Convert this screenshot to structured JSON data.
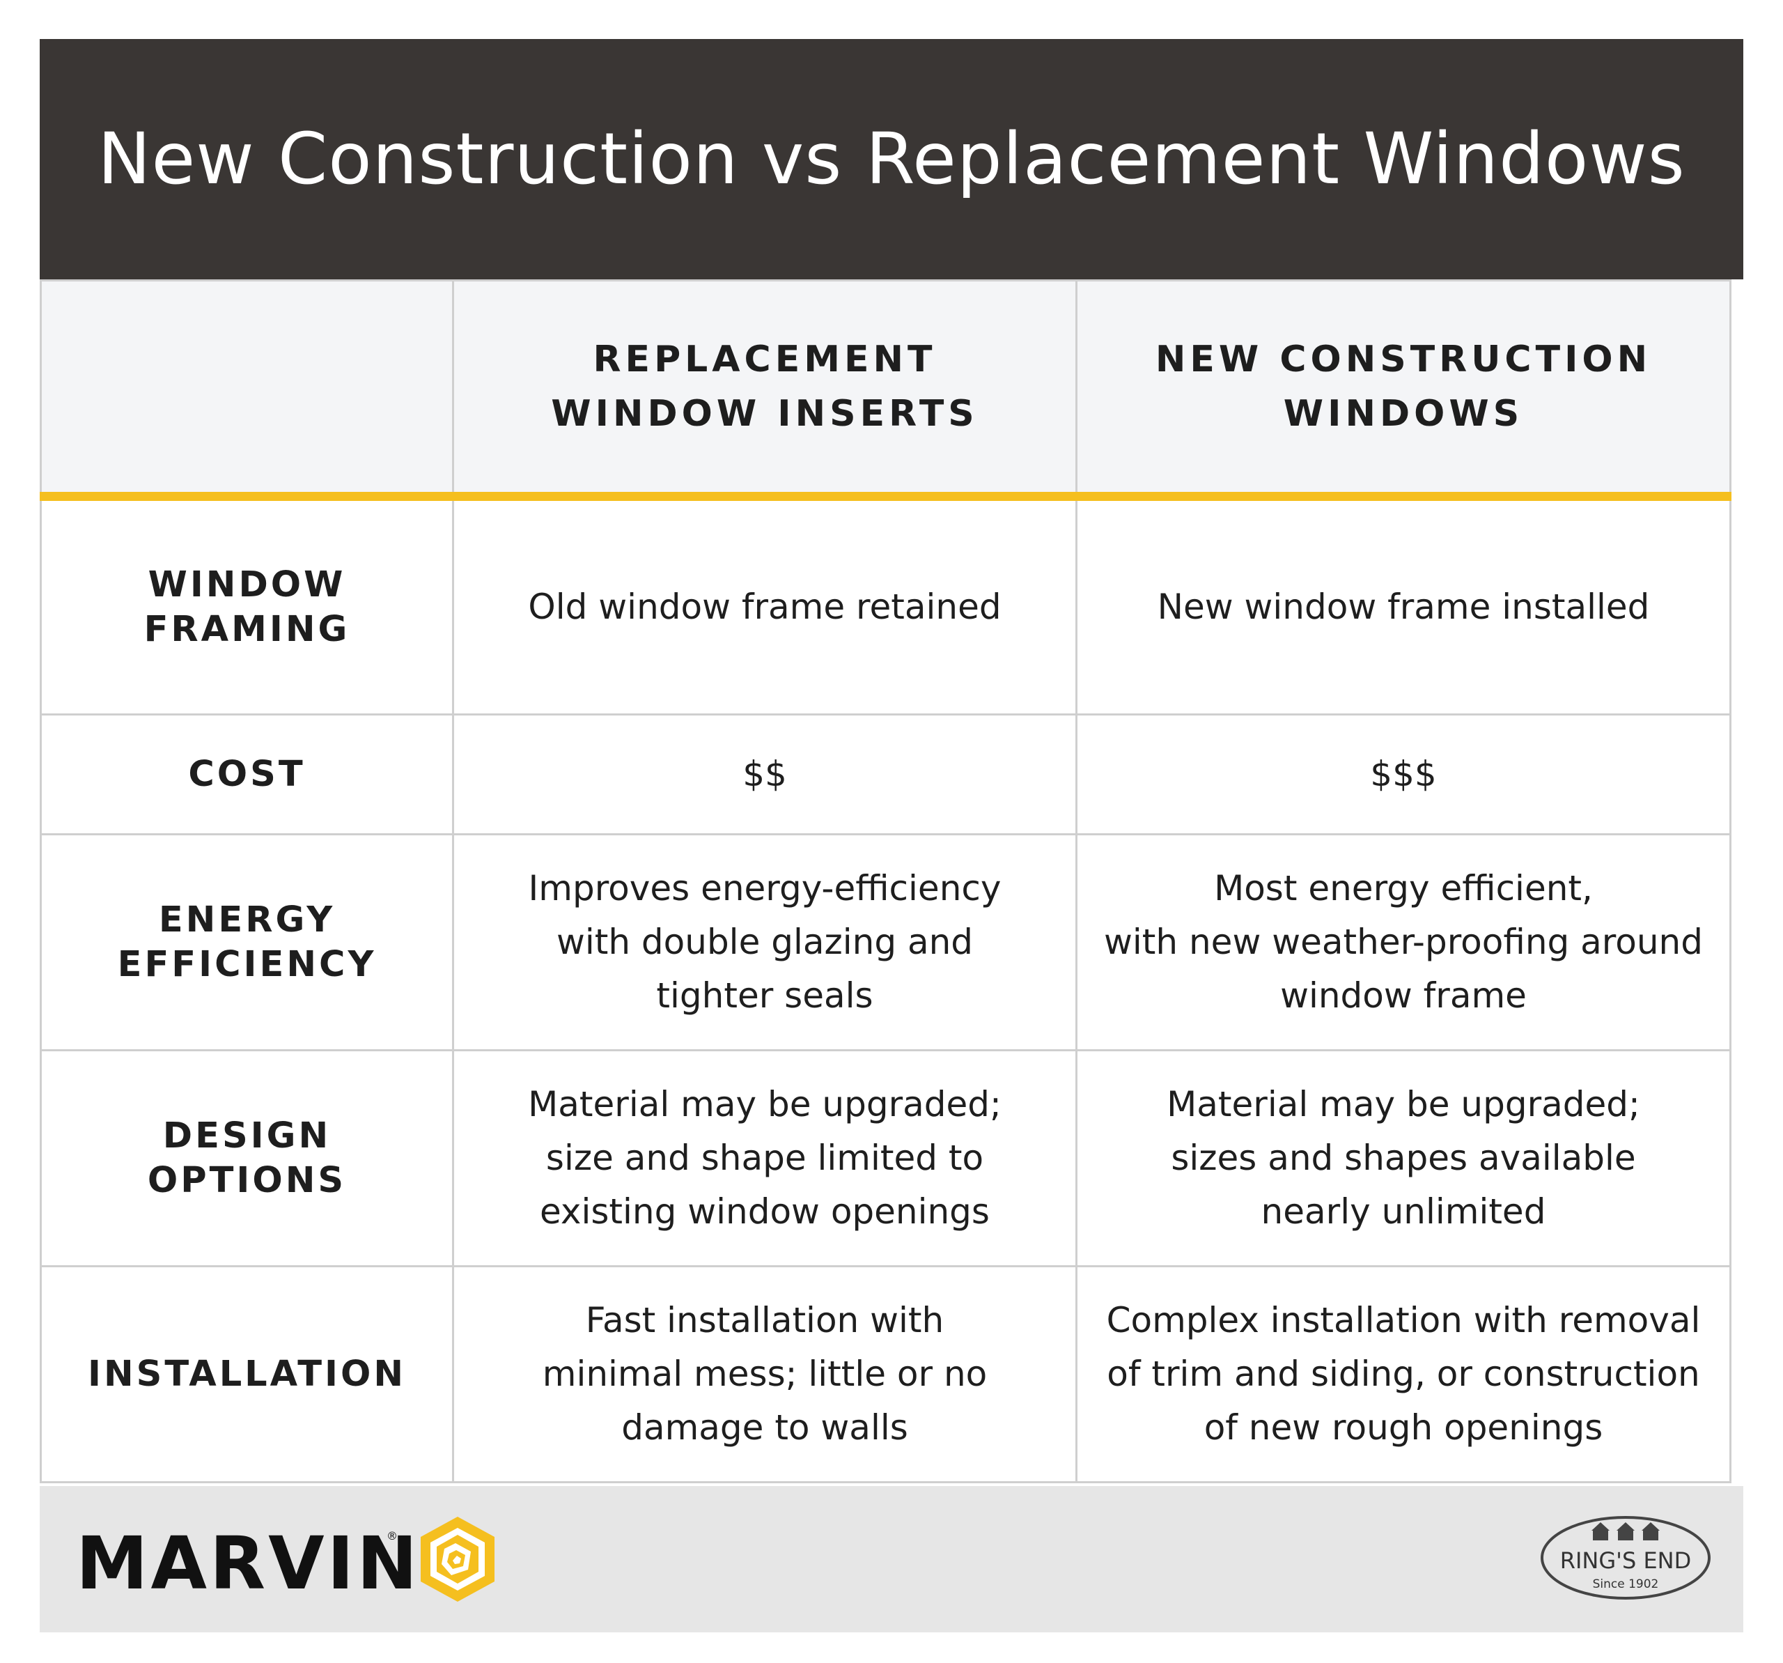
{
  "title": "New Construction vs Replacement Windows",
  "columns": [
    "",
    "REPLACEMENT\nWINDOW INSERTS",
    "NEW CONSTRUCTION\nWINDOWS"
  ],
  "rows": [
    {
      "label": "WINDOW\nFRAMING",
      "replacement": "Old window frame retained",
      "new_construction": "New window frame installed"
    },
    {
      "label": "COST",
      "replacement": "$$",
      "new_construction": "$$$"
    },
    {
      "label": "ENERGY\nEFFICIENCY",
      "replacement": "Improves energy-efficiency\nwith double glazing and\ntighter seals",
      "new_construction": "Most energy efficient,\nwith new weather-proofing around\nwindow frame"
    },
    {
      "label": "DESIGN\nOPTIONS",
      "replacement": "Material may be upgraded;\nsize and shape limited to\nexisting window openings",
      "new_construction": "Material may be upgraded;\nsizes and shapes available\nnearly unlimited"
    },
    {
      "label": "INSTALLATION",
      "replacement": "Fast installation with\nminimal mess; little or no\ndamage to walls",
      "new_construction": "Complex installation with removal\nof trim and siding, or construction\nof new rough openings"
    }
  ],
  "footer": {
    "brand": "MARVIN",
    "brand_mark": "®",
    "partner_name": "RING'S END",
    "partner_tagline": "Since 1902"
  },
  "colors": {
    "header_bg": "#3a3634",
    "accent": "#f5bf1f",
    "header_row_bg": "#f4f5f7",
    "footer_bg": "#e6e6e6",
    "grid": "#cfcfcf"
  }
}
